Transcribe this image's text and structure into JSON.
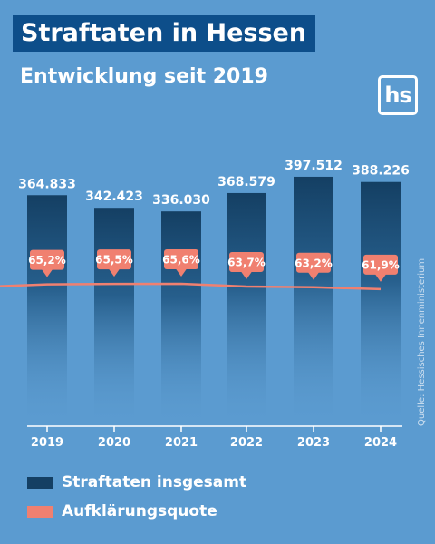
{
  "header": {
    "title": "Straftaten in Hessen",
    "subtitle": "Entwicklung seit 2019",
    "logo": "hs",
    "source": "Quelle: Hessisches Innenministerium"
  },
  "colors": {
    "background": "#5b9bd0",
    "bar": "#143f63",
    "line": "#f08070",
    "label_bubble": "#f08070"
  },
  "chart_data": {
    "type": "bar",
    "categories": [
      "2019",
      "2020",
      "2021",
      "2022",
      "2023",
      "2024"
    ],
    "series": [
      {
        "name": "Straftaten insgesamt",
        "type": "bar",
        "values": [
          364833,
          342423,
          336030,
          368579,
          397512,
          388226
        ],
        "labels": [
          "364.833",
          "342.423",
          "336.030",
          "368.579",
          "397.512",
          "388.226"
        ]
      },
      {
        "name": "Aufklärungsquote",
        "type": "line",
        "values": [
          65.2,
          65.5,
          65.6,
          63.7,
          63.2,
          61.9
        ],
        "labels": [
          "65,2%",
          "65,5%",
          "65,6%",
          "63,7%",
          "63,2%",
          "61,9%"
        ]
      }
    ],
    "grid": false,
    "legend": "bottom-left"
  },
  "legend": [
    {
      "label": "Straftaten insgesamt",
      "color": "#143f63"
    },
    {
      "label": "Aufklärungsquote",
      "color": "#f08070"
    }
  ]
}
